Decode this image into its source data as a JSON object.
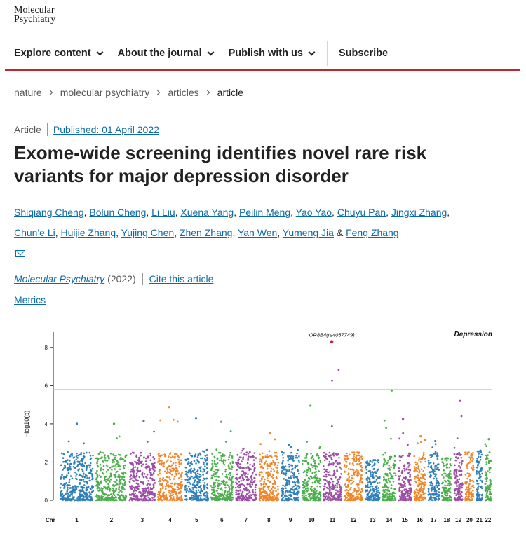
{
  "logo": {
    "line1": "Molecular",
    "line2": "Psychiatry"
  },
  "nav": {
    "items": [
      "Explore content",
      "About the journal",
      "Publish with us"
    ],
    "subscribe": "Subscribe"
  },
  "breadcrumb": [
    "nature",
    "molecular psychiatry",
    "articles",
    "article"
  ],
  "meta": {
    "type": "Article",
    "published": "Published: 01 April 2022"
  },
  "title": "Exome-wide screening identifies novel rare risk variants for major depression disorder",
  "authors": [
    "Shiqiang Cheng",
    "Bolun Cheng",
    "Li Liu",
    "Xuena Yang",
    "Peilin Meng",
    "Yao Yao",
    "Chuyu Pan",
    "Jingxi Zhang",
    "Chun'e Li",
    "Huijie Zhang",
    "Yujing Chen",
    "Zhen Zhang",
    "Yan Wen",
    "Yumeng Jia",
    "Feng Zhang"
  ],
  "author_joiner": "&",
  "journal": {
    "name": "Molecular Psychiatry",
    "year": "(2022)",
    "cite": "Cite this article"
  },
  "metrics": "Metrics",
  "chart_data": {
    "type": "scatter",
    "title": "Depression",
    "xlabel": "Chr",
    "ylabel": "−log10(p)",
    "ylim": [
      0,
      8.8
    ],
    "yticks": [
      0,
      2,
      4,
      6,
      8
    ],
    "threshold": 5.8,
    "categories": [
      "1",
      "2",
      "3",
      "4",
      "5",
      "6",
      "7",
      "8",
      "9",
      "10",
      "11",
      "12",
      "13",
      "14",
      "15",
      "16",
      "17",
      "18",
      "19",
      "20",
      "21",
      "22"
    ],
    "colors": [
      "#2f7fb8",
      "#4dae4d",
      "#9b4ea6",
      "#f0862a"
    ],
    "top_per_chromosome": [
      4.0,
      4.0,
      4.15,
      4.85,
      4.3,
      4.1,
      2.7,
      3.5,
      2.9,
      4.95,
      8.3,
      2.5,
      2.1,
      5.75,
      4.25,
      3.35,
      3.1,
      2.2,
      5.2,
      2.5,
      2.6,
      3.2
    ],
    "highlight": {
      "chr": "11",
      "value": 8.3,
      "label": "OR8B4(rs4057749)",
      "color": "#d7191c"
    }
  }
}
